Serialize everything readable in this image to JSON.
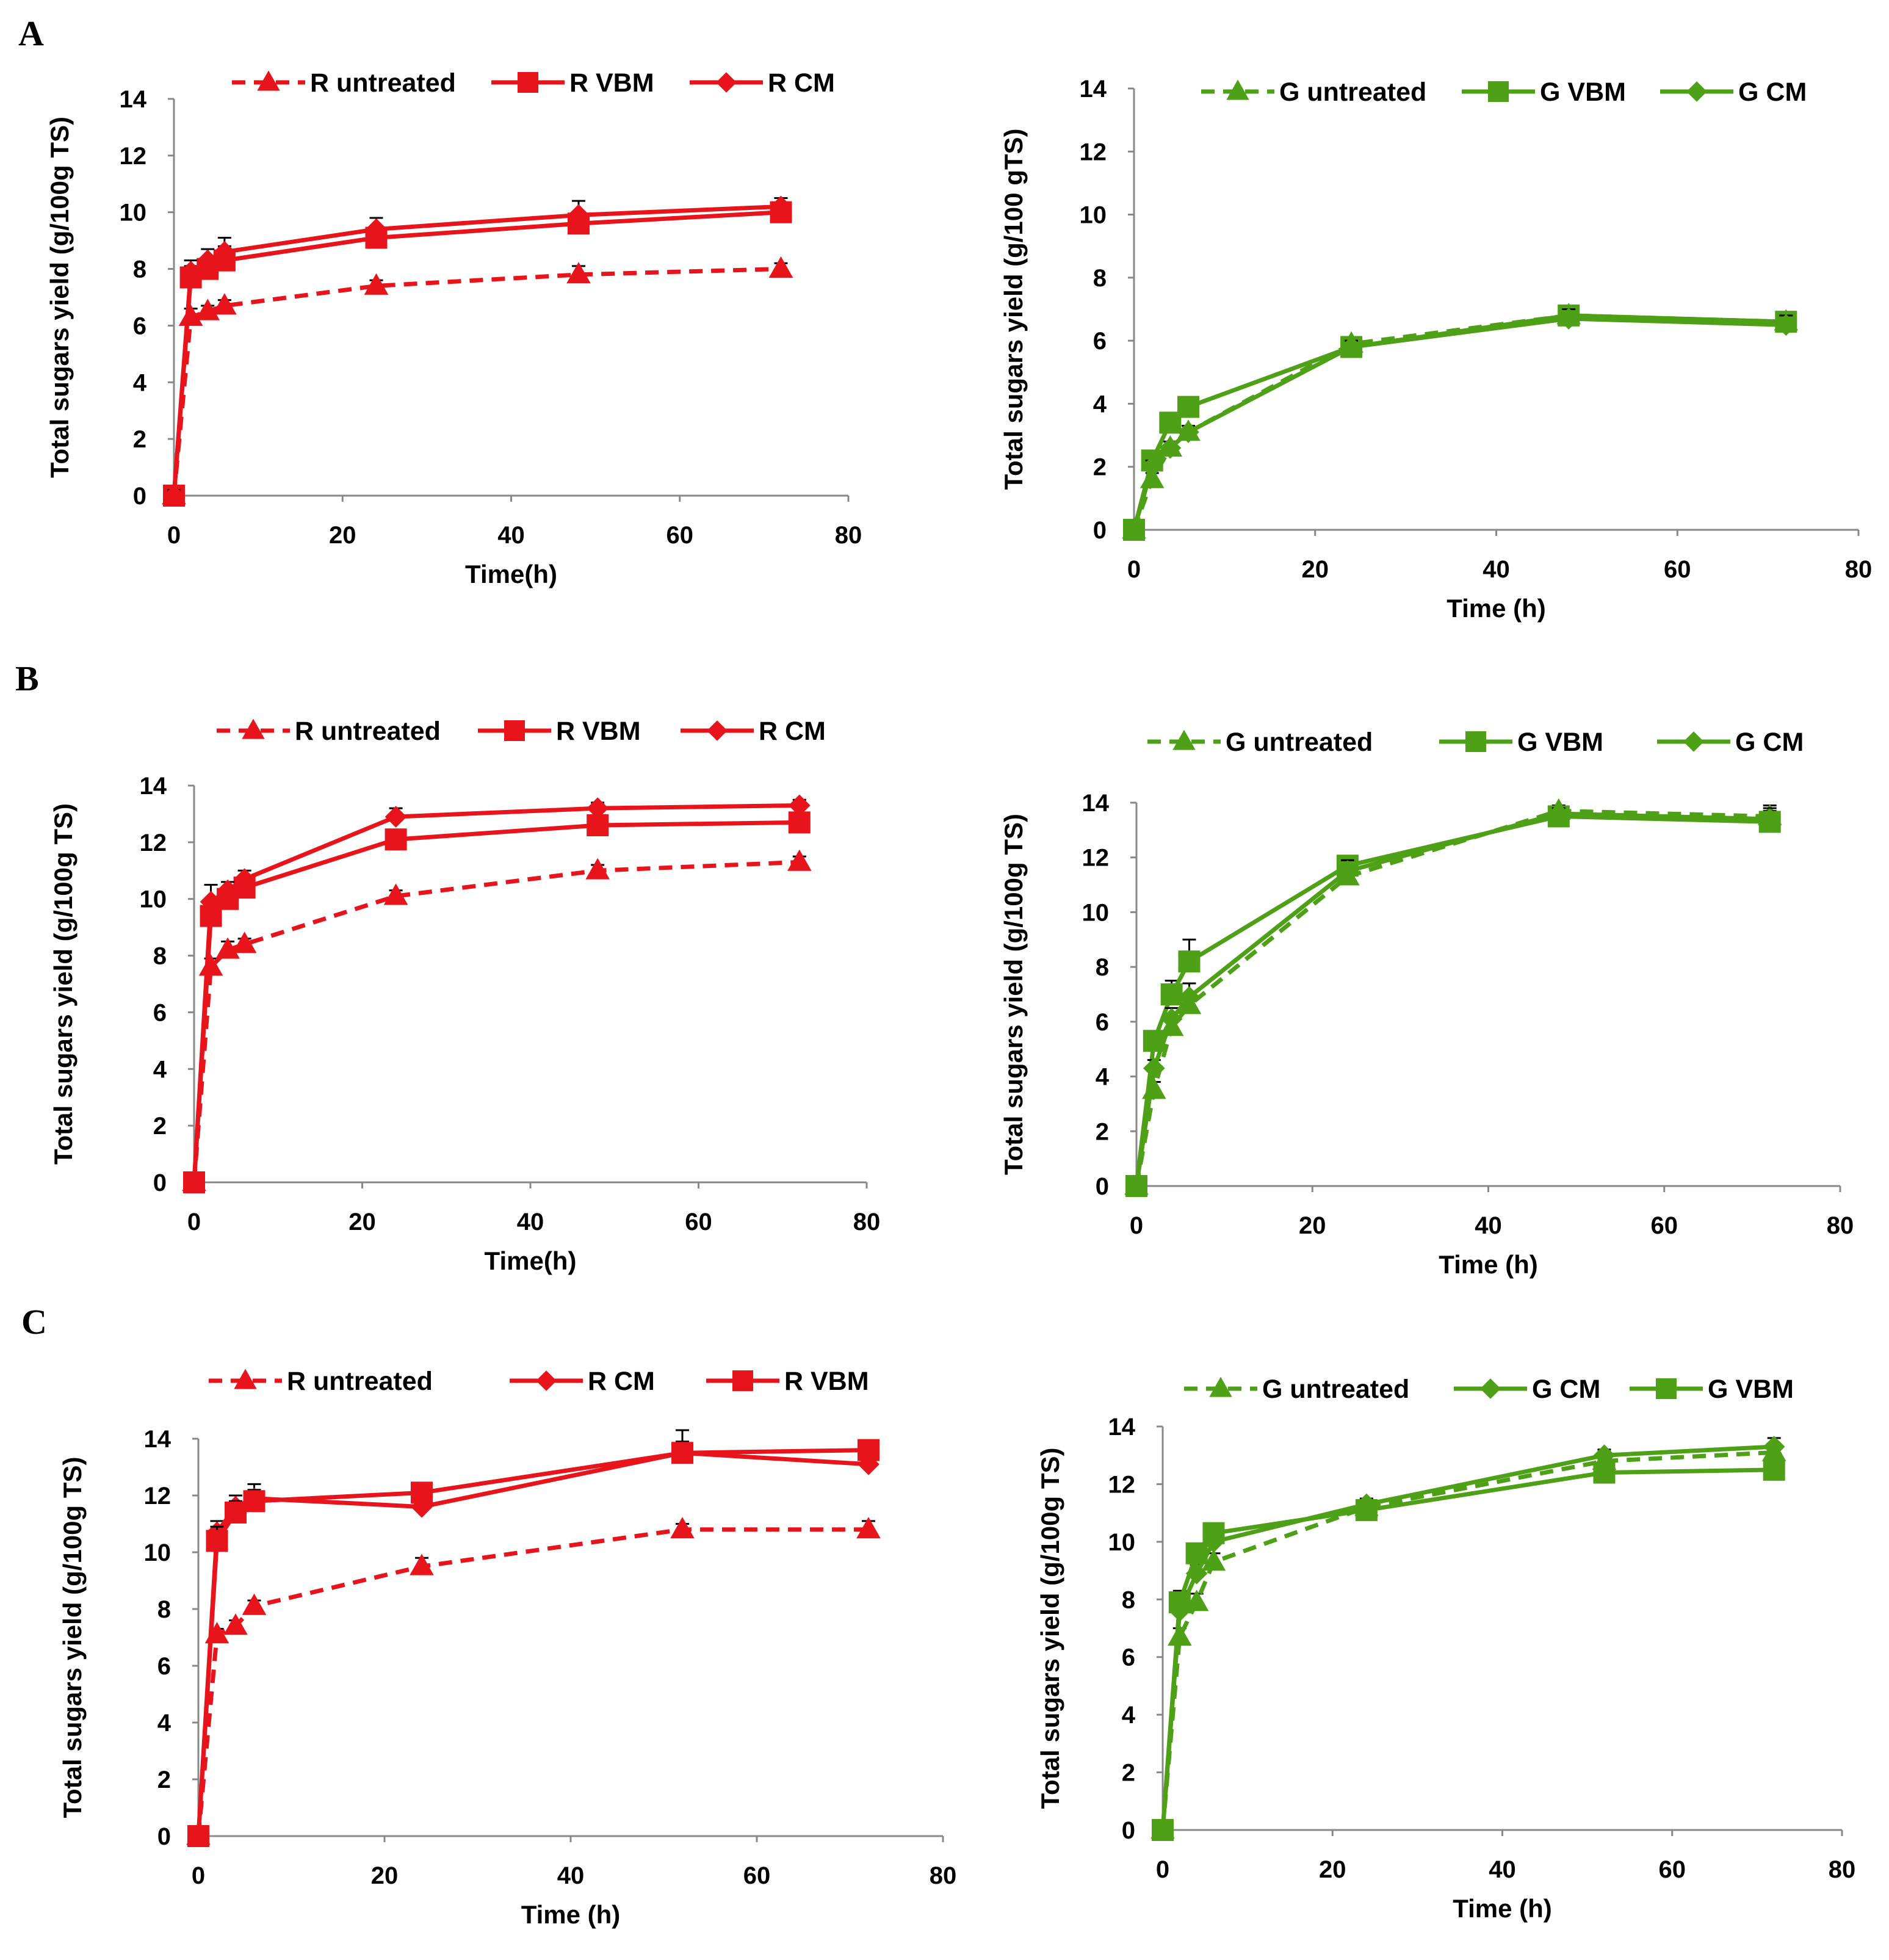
{
  "colors": {
    "red": "#e8141c",
    "green": "#4ea017"
  },
  "panel_letters": [
    "A",
    "B",
    "C"
  ],
  "chart_data": [
    {
      "id": "A-left",
      "panel": "A",
      "type": "line",
      "color": "#e8141c",
      "xlabel": "Time(h)",
      "ylabel": "Total sugars yield (g/100g TS)",
      "xlim": [
        0,
        80
      ],
      "ylim": [
        0,
        14
      ],
      "xticks": [
        "0",
        "20",
        "40",
        "60",
        "80"
      ],
      "yticks": [
        "0",
        "2",
        "4",
        "6",
        "8",
        "10",
        "12",
        "14"
      ],
      "x": [
        0,
        2,
        4,
        6,
        24,
        48,
        72
      ],
      "series": [
        {
          "name": "R untreated",
          "marker": "triangle",
          "dashed": true,
          "values": [
            0,
            6.3,
            6.5,
            6.7,
            7.4,
            7.8,
            8.0
          ],
          "errors": [
            0.2,
            0.3,
            0.2,
            0.2,
            0.2,
            0.3,
            0.2
          ]
        },
        {
          "name": "R VBM",
          "marker": "square",
          "dashed": false,
          "values": [
            0,
            7.7,
            8.0,
            8.3,
            9.1,
            9.6,
            10.0
          ],
          "errors": [
            0.3,
            0.4,
            0.4,
            0.5,
            0.3,
            0.4,
            0.3
          ]
        },
        {
          "name": "R CM",
          "marker": "diamond",
          "dashed": false,
          "values": [
            0,
            7.9,
            8.3,
            8.6,
            9.4,
            9.9,
            10.2
          ],
          "errors": [
            0.2,
            0.4,
            0.4,
            0.5,
            0.4,
            0.5,
            0.3
          ]
        }
      ]
    },
    {
      "id": "A-right",
      "panel": "A",
      "type": "line",
      "color": "#4ea017",
      "xlabel": "Time (h)",
      "ylabel": "Total sugars yield (g/100 gTS)",
      "xlim": [
        0,
        80
      ],
      "ylim": [
        0,
        14
      ],
      "xticks": [
        "0",
        "20",
        "40",
        "60",
        "80"
      ],
      "yticks": [
        "0",
        "2",
        "4",
        "6",
        "8",
        "10",
        "12",
        "14"
      ],
      "x": [
        0,
        2,
        4,
        6,
        24,
        48,
        72
      ],
      "series": [
        {
          "name": "G untreated",
          "marker": "triangle",
          "dashed": true,
          "values": [
            0,
            1.6,
            2.6,
            3.1,
            5.9,
            6.8,
            6.6
          ],
          "errors": [
            0.1,
            0.2,
            0.2,
            0.2,
            0.2,
            0.3,
            0.3
          ]
        },
        {
          "name": "G VBM",
          "marker": "square",
          "dashed": false,
          "values": [
            0,
            2.2,
            3.4,
            3.9,
            5.8,
            6.8,
            6.6
          ],
          "errors": [
            0.1,
            0.2,
            0.2,
            0.2,
            0.2,
            0.3,
            0.3
          ]
        },
        {
          "name": "G CM",
          "marker": "diamond",
          "dashed": false,
          "values": [
            0,
            2.0,
            2.6,
            3.1,
            5.8,
            6.7,
            6.5
          ],
          "errors": [
            0.1,
            0.2,
            0.2,
            0.2,
            0.2,
            0.3,
            0.3
          ]
        }
      ]
    },
    {
      "id": "B-left",
      "panel": "B",
      "type": "line",
      "color": "#e8141c",
      "xlabel": "Time(h)",
      "ylabel": "Total sugars yield (g/100g TS)",
      "xlim": [
        0,
        80
      ],
      "ylim": [
        0,
        14
      ],
      "xticks": [
        "0",
        "20",
        "40",
        "60",
        "80"
      ],
      "yticks": [
        "0",
        "2",
        "4",
        "6",
        "8",
        "10",
        "12",
        "14"
      ],
      "x": [
        0,
        2,
        4,
        6,
        24,
        48,
        72
      ],
      "series": [
        {
          "name": "R untreated",
          "marker": "triangle",
          "dashed": true,
          "values": [
            0,
            7.6,
            8.2,
            8.4,
            10.1,
            11.0,
            11.3
          ],
          "errors": [
            0.1,
            0.3,
            0.3,
            0.2,
            0.2,
            0.2,
            0.2
          ]
        },
        {
          "name": "R VBM",
          "marker": "square",
          "dashed": false,
          "values": [
            0,
            9.4,
            10.0,
            10.4,
            12.1,
            12.6,
            12.7
          ],
          "errors": [
            0.1,
            0.4,
            0.3,
            0.3,
            0.2,
            0.2,
            0.2
          ]
        },
        {
          "name": "R CM",
          "marker": "diamond",
          "dashed": false,
          "values": [
            0,
            9.9,
            10.3,
            10.7,
            12.9,
            13.2,
            13.3
          ],
          "errors": [
            0.1,
            0.6,
            0.3,
            0.3,
            0.3,
            0.2,
            0.2
          ]
        }
      ]
    },
    {
      "id": "B-right",
      "panel": "B",
      "type": "line",
      "color": "#4ea017",
      "xlabel": "Time (h)",
      "ylabel": "Total sugars yield (g/100g TS)",
      "xlim": [
        0,
        80
      ],
      "ylim": [
        0,
        14
      ],
      "xticks": [
        "0",
        "20",
        "40",
        "60",
        "80"
      ],
      "yticks": [
        "0",
        "2",
        "4",
        "6",
        "8",
        "10",
        "12",
        "14"
      ],
      "x": [
        0,
        2,
        4,
        6,
        24,
        48,
        72
      ],
      "series": [
        {
          "name": "G untreated",
          "marker": "triangle",
          "dashed": true,
          "values": [
            0,
            3.5,
            5.8,
            6.6,
            11.3,
            13.7,
            13.5
          ],
          "errors": [
            0.1,
            0.3,
            0.3,
            0.4,
            0.4,
            0.2,
            0.4
          ]
        },
        {
          "name": "G VBM",
          "marker": "square",
          "dashed": false,
          "values": [
            0,
            5.3,
            7.0,
            8.2,
            11.7,
            13.5,
            13.3
          ],
          "errors": [
            0.1,
            0.3,
            0.5,
            0.8,
            0.3,
            0.2,
            0.4
          ]
        },
        {
          "name": "G CM",
          "marker": "diamond",
          "dashed": false,
          "values": [
            0,
            4.3,
            6.1,
            6.9,
            11.5,
            13.6,
            13.4
          ],
          "errors": [
            0.1,
            0.3,
            0.4,
            0.5,
            0.4,
            0.2,
            0.4
          ]
        }
      ]
    },
    {
      "id": "C-left",
      "panel": "C",
      "type": "line",
      "color": "#e8141c",
      "xlabel": "Time (h)",
      "ylabel": "Total sugars yield (g/100g TS)",
      "xlim": [
        0,
        80
      ],
      "ylim": [
        0,
        14
      ],
      "xticks": [
        "0",
        "20",
        "40",
        "60",
        "80"
      ],
      "yticks": [
        "0",
        "2",
        "4",
        "6",
        "8",
        "10",
        "12",
        "14"
      ],
      "x": [
        0,
        2,
        4,
        6,
        24,
        52,
        72
      ],
      "series": [
        {
          "name": "R untreated",
          "marker": "triangle",
          "dashed": true,
          "values": [
            0,
            7.1,
            7.4,
            8.1,
            9.5,
            10.8,
            10.8
          ],
          "errors": [
            0.1,
            0.2,
            0.2,
            0.2,
            0.3,
            0.2,
            0.3
          ]
        },
        {
          "name": "R CM",
          "marker": "diamond",
          "dashed": false,
          "values": [
            0,
            10.7,
            11.6,
            11.9,
            11.6,
            13.5,
            13.1
          ],
          "errors": [
            0.1,
            0.4,
            0.4,
            0.5,
            0.3,
            0.4,
            0.4
          ]
        },
        {
          "name": "R VBM",
          "marker": "square",
          "dashed": false,
          "values": [
            0,
            10.4,
            11.4,
            11.8,
            12.1,
            13.5,
            13.6
          ],
          "errors": [
            0.1,
            0.5,
            0.4,
            0.4,
            0.3,
            0.8,
            0.3
          ]
        }
      ]
    },
    {
      "id": "C-right",
      "panel": "C",
      "type": "line",
      "color": "#4ea017",
      "xlabel": "Time (h)",
      "ylabel": "Total sugars yield (g/100g TS)",
      "xlim": [
        0,
        80
      ],
      "ylim": [
        0,
        14
      ],
      "xticks": [
        "0",
        "20",
        "40",
        "60",
        "80"
      ],
      "yticks": [
        "0",
        "2",
        "4",
        "6",
        "8",
        "10",
        "12",
        "14"
      ],
      "x": [
        0,
        2,
        4,
        6,
        24,
        52,
        72
      ],
      "series": [
        {
          "name": "G untreated",
          "marker": "triangle",
          "dashed": true,
          "values": [
            0,
            6.7,
            7.9,
            9.3,
            11.2,
            12.8,
            13.1
          ],
          "errors": [
            0.1,
            0.3,
            0.3,
            0.3,
            0.2,
            0.2,
            0.3
          ]
        },
        {
          "name": "G CM",
          "marker": "diamond",
          "dashed": false,
          "values": [
            0,
            7.6,
            8.9,
            10.0,
            11.3,
            13.0,
            13.3
          ],
          "errors": [
            0.1,
            0.4,
            0.3,
            0.3,
            0.2,
            0.2,
            0.3
          ]
        },
        {
          "name": "G VBM",
          "marker": "square",
          "dashed": false,
          "values": [
            0,
            7.9,
            9.6,
            10.3,
            11.1,
            12.4,
            12.5
          ],
          "errors": [
            0.1,
            0.4,
            0.3,
            0.3,
            0.2,
            0.2,
            0.3
          ]
        }
      ]
    }
  ]
}
